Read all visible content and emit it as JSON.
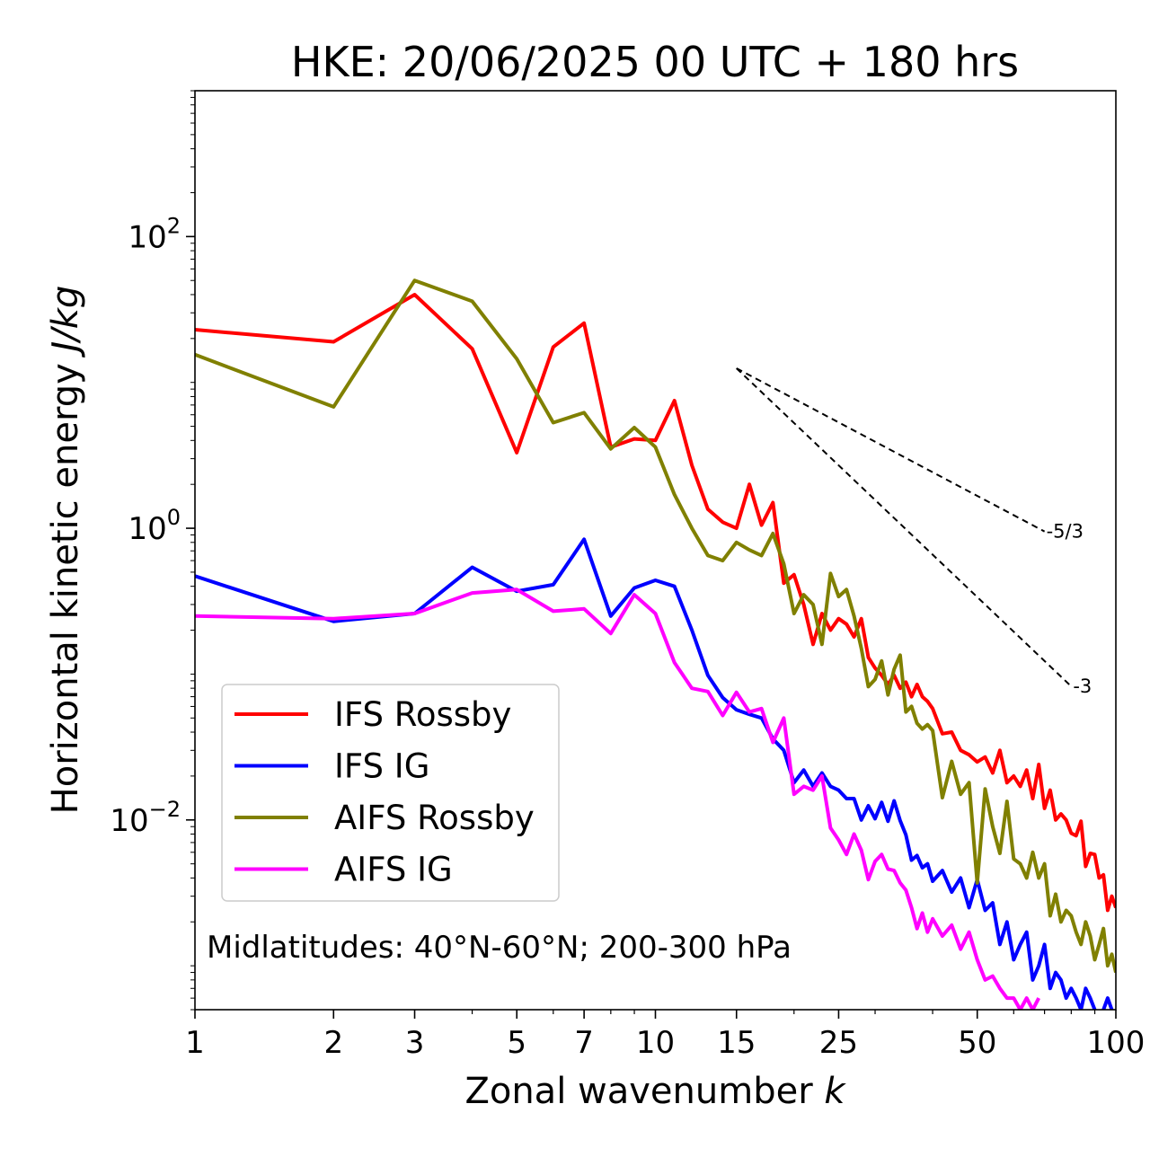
{
  "chart_data": {
    "type": "line",
    "title": "HKE: 20/06/2025 00 UTC + 180 hrs",
    "xlabel": "Zonal wavenumber ",
    "xlabel_var": "k",
    "ylabel": "Horizontal kinetic energy ",
    "ylabel_unit": "J/kg",
    "x_scale": "log",
    "y_scale": "log",
    "xlim": [
      1,
      100
    ],
    "ylim": [
      0.0005,
      1000
    ],
    "x_ticks": [
      1,
      2,
      3,
      5,
      7,
      10,
      15,
      25,
      50,
      100
    ],
    "x_tick_labels": [
      "1",
      "2",
      "3",
      "5",
      "7",
      "10",
      "15",
      "25",
      "50",
      "100"
    ],
    "y_ticks": [
      {
        "value": 100,
        "base": "10",
        "exp": "2"
      },
      {
        "value": 1,
        "base": "10",
        "exp": "0"
      },
      {
        "value": 0.01,
        "base": "10",
        "exp": "−2"
      }
    ],
    "grid": false,
    "legend_position": "lower-left",
    "annotation": "Midlatitudes: 40°N-60°N; 200-300 hPa",
    "reference_slopes": [
      {
        "label": "-5/3",
        "slope": -1.6667,
        "x": [
          15,
          70
        ],
        "y": [
          12.5,
          0.95
        ]
      },
      {
        "label": "-3",
        "slope": -3,
        "x": [
          15,
          80
        ],
        "y": [
          12.5,
          0.0824
        ]
      }
    ],
    "series": [
      {
        "name": "IFS Rossby",
        "color": "#ff0000",
        "x": [
          1,
          2,
          3,
          4,
          5,
          6,
          7,
          8,
          9,
          10,
          11,
          12,
          13,
          14,
          15,
          16,
          17,
          18,
          19,
          20,
          21,
          22,
          23,
          24,
          25,
          26,
          27,
          28,
          29,
          30,
          31,
          32,
          33,
          34,
          35,
          36,
          37,
          38,
          39,
          40,
          42,
          44,
          46,
          48,
          50,
          52,
          54,
          56,
          58,
          60,
          62,
          64,
          66,
          68,
          70,
          72,
          74,
          76,
          78,
          80,
          82,
          84,
          86,
          88,
          90,
          92,
          94,
          96,
          98,
          100
        ],
        "y": [
          23,
          19,
          40,
          17,
          3.3,
          17.5,
          25.5,
          3.6,
          4.1,
          4.0,
          7.5,
          2.7,
          1.35,
          1.1,
          1.0,
          2.0,
          1.05,
          1.5,
          0.42,
          0.48,
          0.3,
          0.16,
          0.26,
          0.2,
          0.24,
          0.22,
          0.18,
          0.24,
          0.13,
          0.11,
          0.098,
          0.085,
          0.098,
          0.08,
          0.088,
          0.07,
          0.085,
          0.07,
          0.065,
          0.058,
          0.039,
          0.04,
          0.03,
          0.028,
          0.025,
          0.027,
          0.021,
          0.03,
          0.018,
          0.02,
          0.017,
          0.022,
          0.014,
          0.024,
          0.012,
          0.016,
          0.01,
          0.011,
          0.01,
          0.0081,
          0.0078,
          0.0098,
          0.0048,
          0.0059,
          0.0058,
          0.004,
          0.0042,
          0.0024,
          0.003,
          0.0025
        ]
      },
      {
        "name": "IFS IG",
        "color": "#0000ff",
        "x": [
          1,
          2,
          3,
          4,
          5,
          6,
          7,
          8,
          9,
          10,
          11,
          12,
          13,
          14,
          15,
          16,
          17,
          18,
          19,
          20,
          21,
          22,
          23,
          24,
          25,
          26,
          27,
          28,
          29,
          30,
          31,
          32,
          33,
          34,
          35,
          36,
          37,
          38,
          39,
          40,
          42,
          44,
          46,
          48,
          50,
          52,
          54,
          56,
          58,
          60,
          62,
          64,
          66,
          68,
          70,
          72,
          74,
          76,
          78,
          80,
          82,
          84,
          86,
          88,
          90,
          92,
          94,
          96,
          98,
          100
        ],
        "y": [
          0.47,
          0.23,
          0.26,
          0.54,
          0.37,
          0.41,
          0.84,
          0.25,
          0.39,
          0.44,
          0.4,
          0.2,
          0.098,
          0.069,
          0.057,
          0.053,
          0.05,
          0.036,
          0.03,
          0.018,
          0.022,
          0.017,
          0.021,
          0.017,
          0.016,
          0.014,
          0.014,
          0.01,
          0.0125,
          0.0102,
          0.0132,
          0.0098,
          0.0135,
          0.0099,
          0.0079,
          0.0053,
          0.0057,
          0.0047,
          0.005,
          0.0038,
          0.0045,
          0.0032,
          0.004,
          0.0025,
          0.0039,
          0.0024,
          0.0027,
          0.0014,
          0.002,
          0.0011,
          0.0014,
          0.0017,
          0.0008,
          0.001,
          0.0014,
          0.0007,
          0.0009,
          0.0008,
          0.0006,
          0.0007,
          0.0006,
          0.0005,
          0.0007,
          0.0006,
          0.0005,
          0.0004,
          0.0005,
          0.0006,
          0.0005,
          0.0004
        ]
      },
      {
        "name": "AIFS Rossby",
        "color": "#808000",
        "x": [
          1,
          2,
          3,
          4,
          5,
          6,
          7,
          8,
          9,
          10,
          11,
          12,
          13,
          14,
          15,
          16,
          17,
          18,
          19,
          20,
          21,
          22,
          23,
          24,
          25,
          26,
          27,
          28,
          29,
          30,
          31,
          32,
          33,
          34,
          35,
          36,
          37,
          38,
          39,
          40,
          42,
          44,
          46,
          48,
          50,
          52,
          54,
          56,
          58,
          60,
          62,
          64,
          66,
          68,
          70,
          72,
          74,
          76,
          78,
          80,
          82,
          84,
          86,
          88,
          90,
          92,
          94,
          96,
          98,
          100
        ],
        "y": [
          15.5,
          6.8,
          50,
          36,
          14.5,
          5.3,
          6.2,
          3.5,
          4.9,
          3.6,
          1.7,
          1.0,
          0.65,
          0.6,
          0.8,
          0.71,
          0.65,
          0.92,
          0.57,
          0.26,
          0.35,
          0.3,
          0.16,
          0.49,
          0.34,
          0.38,
          0.25,
          0.15,
          0.082,
          0.092,
          0.123,
          0.072,
          0.108,
          0.135,
          0.055,
          0.06,
          0.046,
          0.042,
          0.045,
          0.041,
          0.0142,
          0.0252,
          0.015,
          0.018,
          0.0037,
          0.0163,
          0.009,
          0.0059,
          0.0134,
          0.0054,
          0.005,
          0.004,
          0.006,
          0.004,
          0.005,
          0.0022,
          0.0031,
          0.002,
          0.0024,
          0.0022,
          0.0017,
          0.0014,
          0.002,
          0.0016,
          0.0011,
          0.0014,
          0.0018,
          0.001,
          0.0012,
          0.0009
        ]
      },
      {
        "name": "AIFS IG",
        "color": "#ff00ff",
        "x": [
          1,
          2,
          3,
          4,
          5,
          6,
          7,
          8,
          9,
          10,
          11,
          12,
          13,
          14,
          15,
          16,
          17,
          18,
          19,
          20,
          21,
          22,
          23,
          24,
          25,
          26,
          27,
          28,
          29,
          30,
          31,
          32,
          33,
          34,
          35,
          36,
          37,
          38,
          39,
          40,
          42,
          44,
          46,
          48,
          50,
          52,
          54,
          56,
          58,
          60,
          62,
          64,
          66,
          68
        ],
        "y": [
          0.25,
          0.24,
          0.26,
          0.36,
          0.38,
          0.27,
          0.28,
          0.19,
          0.35,
          0.26,
          0.12,
          0.08,
          0.076,
          0.052,
          0.075,
          0.055,
          0.058,
          0.034,
          0.05,
          0.015,
          0.017,
          0.016,
          0.02,
          0.0088,
          0.0073,
          0.0058,
          0.008,
          0.0062,
          0.0039,
          0.0052,
          0.0058,
          0.0046,
          0.0045,
          0.0037,
          0.0033,
          0.0025,
          0.0018,
          0.0023,
          0.0017,
          0.0021,
          0.0016,
          0.0019,
          0.0013,
          0.0017,
          0.0011,
          0.0008,
          0.00085,
          0.0007,
          0.0006,
          0.0006,
          0.0005,
          0.0006,
          0.0005,
          0.0006
        ]
      }
    ]
  }
}
